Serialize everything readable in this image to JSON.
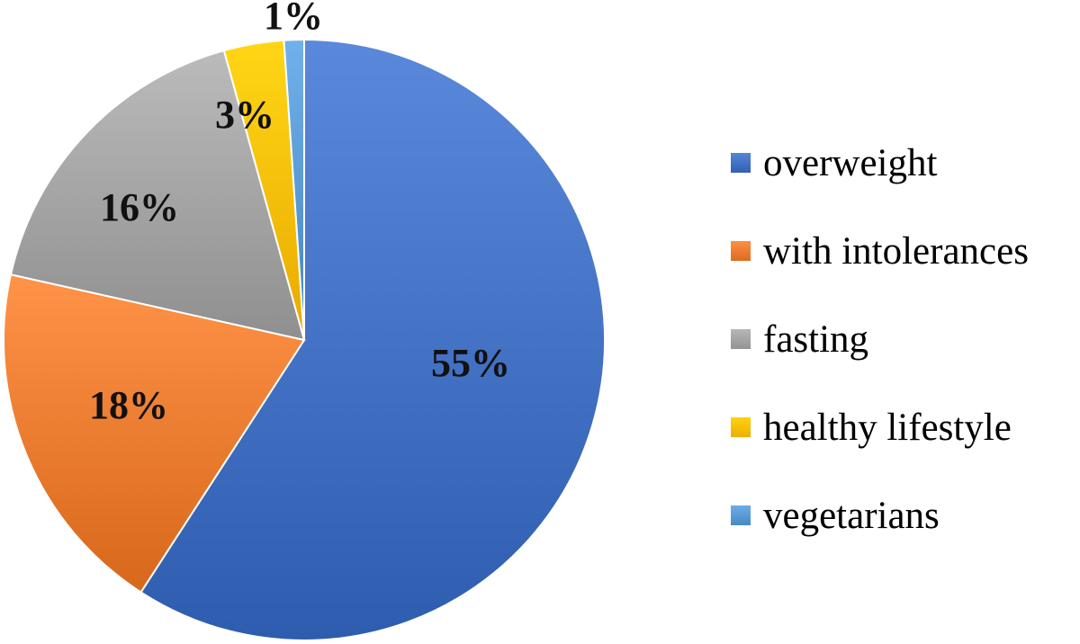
{
  "chart_data": {
    "type": "pie",
    "title": "",
    "start_angle_deg": 0,
    "direction": "clockwise",
    "legend_position": "right",
    "slices": [
      {
        "label": "overweight",
        "value": 55,
        "data_label": "55%",
        "color": "#4472C4"
      },
      {
        "label": "with intolerances",
        "value": 18,
        "data_label": "18%",
        "color": "#ED7D31"
      },
      {
        "label": "fasting",
        "value": 16,
        "data_label": "16%",
        "color": "#A5A5A5"
      },
      {
        "label": "healthy lifestyle",
        "value": 3,
        "data_label": "3%",
        "color": "#FFC000"
      },
      {
        "label": "vegetarians",
        "value": 1,
        "data_label": "1%",
        "color": "#5B9BD5"
      }
    ]
  }
}
